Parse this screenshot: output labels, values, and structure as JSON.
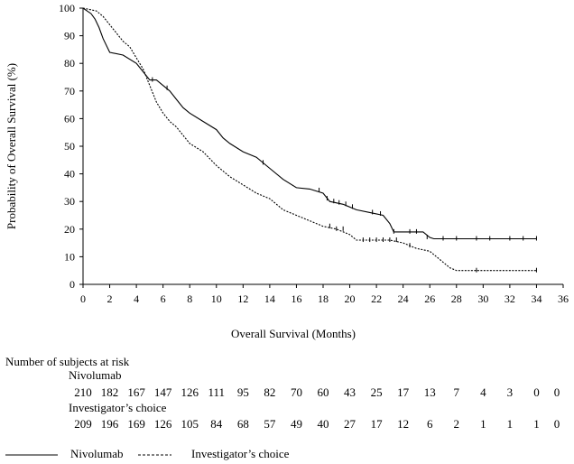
{
  "chart_data": {
    "type": "line",
    "title": "",
    "xlabel": "Overall Survival (Months)",
    "ylabel": "Probability of Overall Survival (%)",
    "xlim": [
      0,
      36
    ],
    "ylim": [
      0,
      100
    ],
    "xticks": [
      0,
      2,
      4,
      6,
      8,
      10,
      12,
      14,
      16,
      18,
      20,
      22,
      24,
      26,
      28,
      30,
      32,
      34,
      36
    ],
    "yticks": [
      0,
      10,
      20,
      30,
      40,
      50,
      60,
      70,
      80,
      90,
      100
    ],
    "grid": false,
    "series": [
      {
        "name": "Nivolumab",
        "style": "solid",
        "points": [
          [
            0,
            100
          ],
          [
            0.3,
            99
          ],
          [
            0.6,
            98
          ],
          [
            0.9,
            96
          ],
          [
            1.2,
            93
          ],
          [
            1.5,
            89
          ],
          [
            2,
            84
          ],
          [
            3,
            83
          ],
          [
            4,
            80
          ],
          [
            4.5,
            77
          ],
          [
            5,
            74
          ],
          [
            5.5,
            74
          ],
          [
            6,
            72
          ],
          [
            6.5,
            70
          ],
          [
            7,
            67
          ],
          [
            7.5,
            64
          ],
          [
            8,
            62
          ],
          [
            9,
            59
          ],
          [
            10,
            56
          ],
          [
            10.5,
            53
          ],
          [
            11,
            51
          ],
          [
            12,
            48
          ],
          [
            13,
            46
          ],
          [
            14,
            42
          ],
          [
            15,
            38
          ],
          [
            16,
            35
          ],
          [
            17,
            34.5
          ],
          [
            18,
            33
          ],
          [
            18.5,
            30
          ],
          [
            19.5,
            29
          ],
          [
            20.5,
            27
          ],
          [
            21.5,
            26
          ],
          [
            22.5,
            25
          ],
          [
            23,
            22
          ],
          [
            23.3,
            19
          ],
          [
            25,
            19
          ],
          [
            25.5,
            19
          ],
          [
            26,
            17
          ],
          [
            26.3,
            16.5
          ],
          [
            34,
            16.5
          ]
        ],
        "censor_marks": [
          [
            5.2,
            74
          ],
          [
            6.3,
            71
          ],
          [
            13.5,
            44
          ],
          [
            17.7,
            34
          ],
          [
            18.3,
            31
          ],
          [
            18.8,
            30
          ],
          [
            19.2,
            29.5
          ],
          [
            19.7,
            29
          ],
          [
            20.2,
            28
          ],
          [
            21.7,
            26
          ],
          [
            22.3,
            25.5
          ],
          [
            23.3,
            19
          ],
          [
            24.5,
            19
          ],
          [
            25,
            19
          ],
          [
            25.8,
            17
          ],
          [
            27,
            16.5
          ],
          [
            28,
            16.5
          ],
          [
            29.5,
            16.5
          ],
          [
            30.5,
            16.5
          ],
          [
            32,
            16.5
          ],
          [
            33,
            16.5
          ],
          [
            34,
            16.5
          ]
        ]
      },
      {
        "name": "Investigator’s choice",
        "style": "dashed",
        "points": [
          [
            0,
            100
          ],
          [
            1,
            99
          ],
          [
            1.5,
            97
          ],
          [
            2,
            94
          ],
          [
            2.5,
            91
          ],
          [
            3,
            88
          ],
          [
            3.5,
            86
          ],
          [
            4,
            82
          ],
          [
            4.5,
            78
          ],
          [
            5,
            72
          ],
          [
            5.5,
            66
          ],
          [
            6,
            62
          ],
          [
            6.5,
            59
          ],
          [
            7,
            57
          ],
          [
            7.5,
            54
          ],
          [
            8,
            51
          ],
          [
            9,
            48
          ],
          [
            10,
            43
          ],
          [
            11,
            39
          ],
          [
            12,
            36
          ],
          [
            13,
            33
          ],
          [
            14,
            31
          ],
          [
            15,
            27
          ],
          [
            16,
            25
          ],
          [
            17,
            23
          ],
          [
            18,
            21
          ],
          [
            19,
            20
          ],
          [
            20,
            18
          ],
          [
            20.5,
            16
          ],
          [
            21,
            16
          ],
          [
            23,
            16
          ],
          [
            24,
            15
          ],
          [
            25,
            13
          ],
          [
            26,
            12
          ],
          [
            27,
            8
          ],
          [
            27.5,
            6
          ],
          [
            28,
            5
          ],
          [
            34,
            5
          ]
        ],
        "censor_marks": [
          [
            18.5,
            21
          ],
          [
            19,
            20
          ],
          [
            19.5,
            20
          ],
          [
            21,
            16
          ],
          [
            21.5,
            16
          ],
          [
            22,
            16
          ],
          [
            22.5,
            16
          ],
          [
            23,
            16
          ],
          [
            23.5,
            16
          ],
          [
            24.5,
            14
          ],
          [
            29.5,
            5
          ],
          [
            34,
            5
          ]
        ]
      }
    ]
  },
  "risk_table": {
    "title": "Number of subjects at risk",
    "groups": [
      {
        "name": "Nivolumab",
        "counts": [
          "210",
          "182",
          "167",
          "147",
          "126",
          "111",
          "95",
          "82",
          "70",
          "60",
          "43",
          "25",
          "17",
          "13",
          "7",
          "4",
          "3",
          "0",
          "0"
        ]
      },
      {
        "name": "Investigator’s choice",
        "counts": [
          "209",
          "196",
          "169",
          "126",
          "105",
          "84",
          "68",
          "57",
          "49",
          "40",
          "27",
          "17",
          "12",
          "6",
          "2",
          "1",
          "1",
          "1",
          "0"
        ]
      }
    ]
  },
  "legend": [
    {
      "label": "Nivolumab",
      "style": "solid"
    },
    {
      "label": "Investigator’s choice",
      "style": "dashed"
    }
  ]
}
